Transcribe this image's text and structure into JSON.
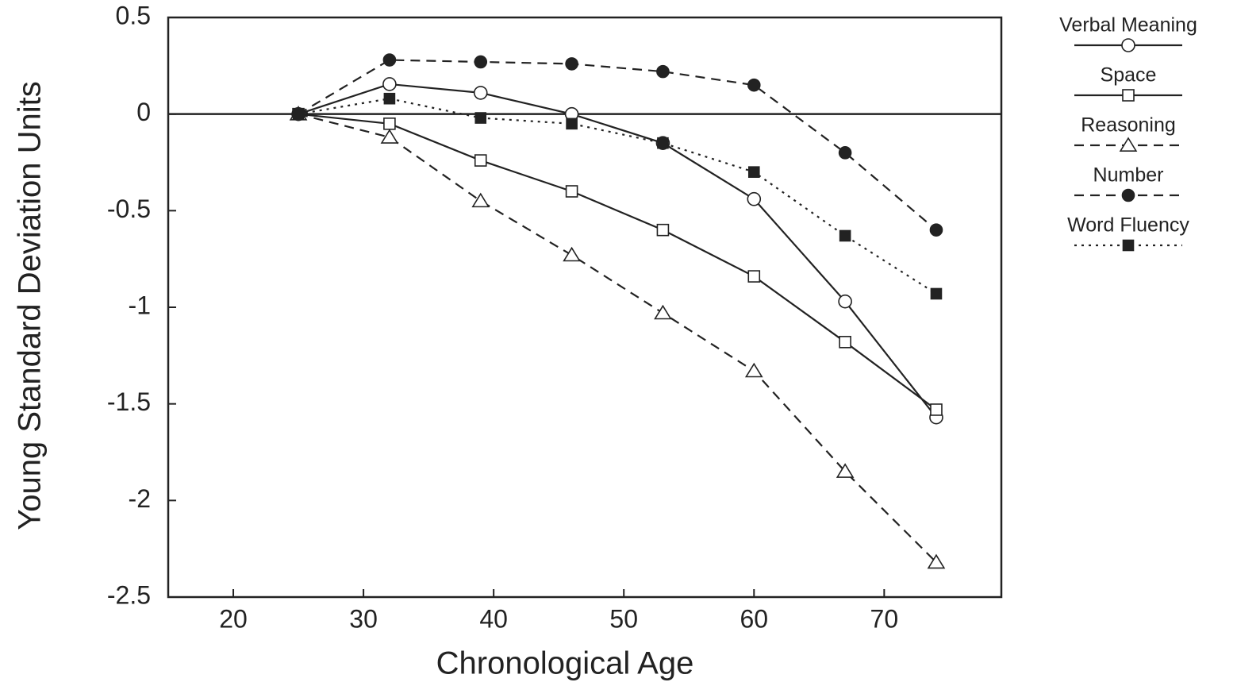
{
  "chart_data": {
    "type": "line",
    "x_label": "Chronological Age",
    "y_label": "Young Standard Deviation Units",
    "x": [
      25,
      32,
      39,
      46,
      53,
      60,
      67,
      74
    ],
    "xlim": [
      15,
      79
    ],
    "xticks": [
      20,
      30,
      40,
      50,
      60,
      70
    ],
    "ylim": [
      -2.5,
      0.5
    ],
    "yticks": [
      0.5,
      0,
      -0.5,
      -1,
      -1.5,
      -2,
      -2.5
    ],
    "zero_line": true,
    "legend": "right",
    "series": [
      {
        "name": "Verbal Meaning",
        "color": "#222222",
        "dash": "solid",
        "marker": "circle-open",
        "values": [
          0,
          0.155,
          0.11,
          0,
          -0.15,
          -0.44,
          -0.97,
          -1.57
        ]
      },
      {
        "name": "Space",
        "color": "#222222",
        "dash": "solid",
        "marker": "square-open",
        "values": [
          0,
          -0.05,
          -0.24,
          -0.4,
          -0.6,
          -0.84,
          -1.18,
          -1.53
        ]
      },
      {
        "name": "Reasoning",
        "color": "#222222",
        "dash": "dashed",
        "marker": "triangle-open",
        "values": [
          0,
          -0.12,
          -0.45,
          -0.73,
          -1.03,
          -1.33,
          -1.85,
          -2.32
        ]
      },
      {
        "name": "Number",
        "color": "#222222",
        "dash": "dashed",
        "marker": "circle-filled",
        "values": [
          0,
          0.28,
          0.27,
          0.26,
          0.22,
          0.15,
          -0.2,
          -0.6
        ]
      },
      {
        "name": "Word Fluency",
        "color": "#222222",
        "dash": "dotted",
        "marker": "square-filled",
        "values": [
          0,
          0.08,
          -0.02,
          -0.05,
          -0.15,
          -0.3,
          -0.63,
          -0.93
        ]
      }
    ]
  }
}
